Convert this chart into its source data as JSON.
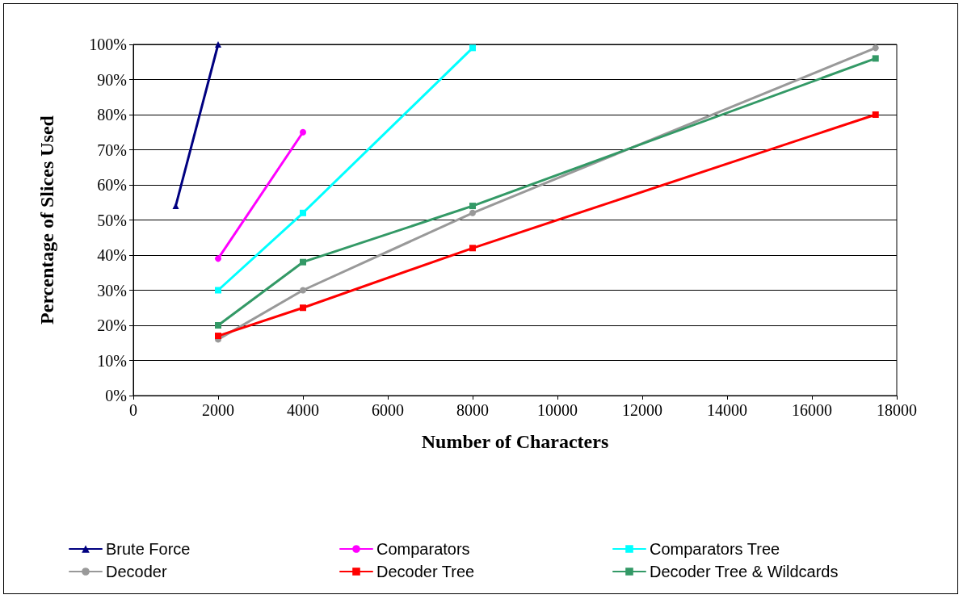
{
  "chart_data": {
    "type": "line",
    "xlabel": "Number of Characters",
    "ylabel": "Percentage of Slices Used",
    "xlim": [
      0,
      18000
    ],
    "xticks": [
      0,
      2000,
      4000,
      6000,
      8000,
      10000,
      12000,
      14000,
      16000,
      18000
    ],
    "ylim": [
      0,
      100
    ],
    "yticks": [
      {
        "value": 0,
        "label": "0%"
      },
      {
        "value": 10,
        "label": "10%"
      },
      {
        "value": 20,
        "label": "20%"
      },
      {
        "value": 30,
        "label": "30%"
      },
      {
        "value": 40,
        "label": "40%"
      },
      {
        "value": 50,
        "label": "50%"
      },
      {
        "value": 60,
        "label": "60%"
      },
      {
        "value": 70,
        "label": "70%"
      },
      {
        "value": 80,
        "label": "80%"
      },
      {
        "value": 90,
        "label": "90%"
      },
      {
        "value": 100,
        "label": "100%"
      }
    ],
    "grid": "y",
    "legend": "bottom",
    "line_style": "solid",
    "series": [
      {
        "name": "Brute Force",
        "color": "#000080",
        "marker": "triangle",
        "x": [
          1000,
          2000
        ],
        "values": [
          54,
          100
        ]
      },
      {
        "name": "Comparators",
        "color": "#ff00ff",
        "marker": "circle",
        "x": [
          2000,
          4000
        ],
        "values": [
          39,
          75
        ]
      },
      {
        "name": "Comparators Tree",
        "color": "#00ffff",
        "marker": "square",
        "x": [
          2000,
          4000,
          8000
        ],
        "values": [
          30,
          52,
          99
        ]
      },
      {
        "name": "Decoder",
        "color": "#999999",
        "marker": "circle",
        "x": [
          2000,
          4000,
          8000,
          17500
        ],
        "values": [
          16,
          30,
          52,
          99
        ]
      },
      {
        "name": "Decoder Tree",
        "color": "#ff0000",
        "marker": "square",
        "x": [
          2000,
          4000,
          8000,
          17500
        ],
        "values": [
          17,
          25,
          42,
          80
        ]
      },
      {
        "name": "Decoder Tree & Wildcards",
        "color": "#339966",
        "marker": "square",
        "x": [
          2000,
          4000,
          8000,
          17500
        ],
        "values": [
          20,
          38,
          54,
          96
        ]
      }
    ]
  }
}
